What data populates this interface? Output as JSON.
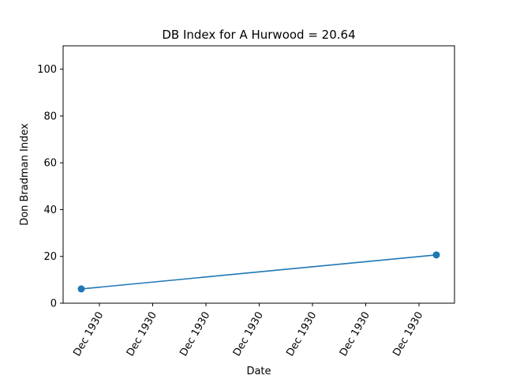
{
  "chart_data": {
    "type": "line",
    "title": "DB Index for A Hurwood = 20.64",
    "xlabel": "Date",
    "ylabel": "Don Bradman Index",
    "ylim": [
      0,
      110
    ],
    "yticks": [
      0,
      20,
      40,
      60,
      80,
      100
    ],
    "xtick_labels": [
      "Dec 1930",
      "Dec 1930",
      "Dec 1930",
      "Dec 1930",
      "Dec 1930",
      "Dec 1930",
      "Dec 1930"
    ],
    "grid": false,
    "legend": "none",
    "series": [
      {
        "color": "#1f77b4",
        "marker": "circle",
        "points": [
          {
            "x": "1930-12-12",
            "y": 6.1
          },
          {
            "x": "1930-12-18",
            "y": 20.64
          }
        ]
      }
    ]
  }
}
